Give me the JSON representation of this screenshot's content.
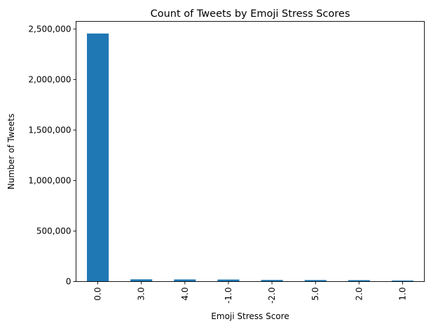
{
  "chart_data": {
    "type": "bar",
    "title": "Count of Tweets by Emoji Stress Scores",
    "xlabel": "Emoji Stress Score",
    "ylabel": "Number of Tweets",
    "categories": [
      "0.0",
      "3.0",
      "4.0",
      "-1.0",
      "-2.0",
      "5.0",
      "2.0",
      "1.0"
    ],
    "values": [
      2455000,
      22000,
      21000,
      20000,
      16000,
      15000,
      14000,
      10000
    ],
    "ylim": [
      0,
      2575000
    ],
    "yticks": [
      0,
      500000,
      1000000,
      1500000,
      2000000,
      2500000
    ],
    "ytick_labels": [
      "0",
      "500,000",
      "1,000,000",
      "1,500,000",
      "2,000,000",
      "2,500,000"
    ],
    "grid": false,
    "bar_color": "#1f77b4"
  }
}
